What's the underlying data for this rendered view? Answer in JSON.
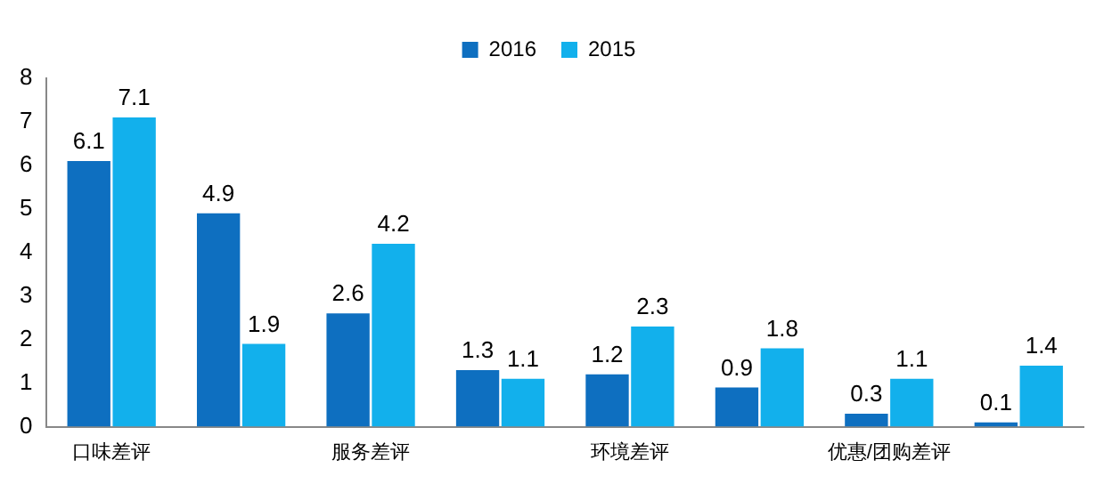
{
  "chart_data": {
    "type": "bar",
    "categories": [
      "口味差评",
      null,
      "服务差评",
      null,
      "环境差评",
      null,
      "优惠/团购差评",
      null
    ],
    "series": [
      {
        "name": "2016",
        "color": "#0e6fc0",
        "values": [
          6.1,
          4.9,
          2.6,
          1.3,
          1.2,
          0.9,
          0.3,
          0.1
        ]
      },
      {
        "name": "2015",
        "color": "#12b0ec",
        "values": [
          7.1,
          1.9,
          4.2,
          1.1,
          2.3,
          1.8,
          1.1,
          1.4
        ]
      }
    ],
    "ylim": [
      0,
      8
    ],
    "yticks": [
      0,
      1,
      2,
      3,
      4,
      5,
      6,
      7,
      8
    ],
    "grid": false,
    "legend": "top",
    "data_labels": true
  }
}
